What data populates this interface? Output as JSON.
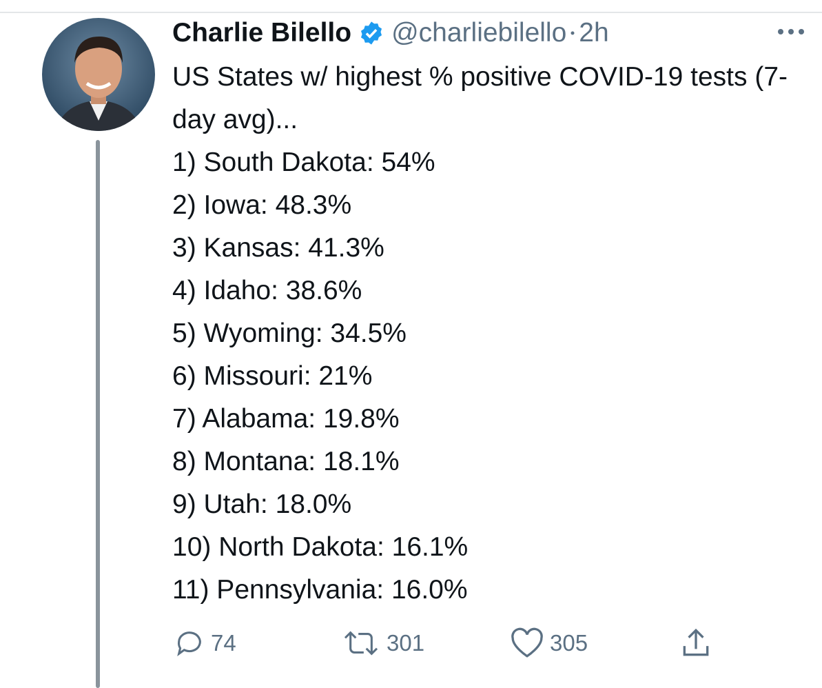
{
  "author": {
    "name": "Charlie Bilello",
    "handle": "@charliebilello",
    "time": "2h"
  },
  "tweet": {
    "intro": "US States w/ highest % positive COVID-19 tests (7-day avg)...",
    "items": [
      "1) South Dakota: 54%",
      "2) Iowa: 48.3%",
      "3) Kansas: 41.3%",
      "4) Idaho: 38.6%",
      "5) Wyoming: 34.5%",
      "6) Missouri: 21%",
      "7) Alabama: 19.8%",
      "8) Montana: 18.1%",
      "9) Utah: 18.0%",
      "10) North Dakota: 16.1%",
      "11) Pennsylvania: 16.0%"
    ]
  },
  "actions": {
    "replies": 74,
    "retweets": 301,
    "likes": 305
  }
}
